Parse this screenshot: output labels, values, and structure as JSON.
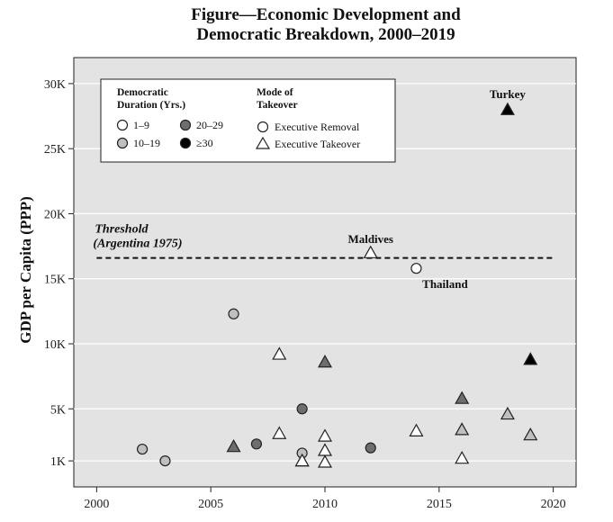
{
  "chart_data": {
    "type": "scatter",
    "title_line1": "Figure—Economic Development and",
    "title_line2": "Democratic Breakdown, 2000–2019",
    "xlabel": "",
    "ylabel": "GDP per Capita (PPP)",
    "xlim": [
      1999,
      2021
    ],
    "ylim": [
      -1000,
      32000
    ],
    "x_ticks": [
      2000,
      2005,
      2010,
      2015,
      2020
    ],
    "x_tick_labels": [
      "2000",
      "2005",
      "2010",
      "2015",
      "2020"
    ],
    "y_ticks": [
      1000,
      5000,
      10000,
      15000,
      20000,
      25000,
      30000
    ],
    "y_tick_labels": [
      "1K",
      "5K",
      "10K",
      "15K",
      "20K",
      "25K",
      "30K"
    ],
    "grid": "horizontal",
    "background_color": "#e3e3e3",
    "legend": {
      "placement": "top-left",
      "duration_title_line1": "Democratic",
      "duration_title_line2": "Duration (Yrs.)",
      "mode_title_line1": "Mode of",
      "mode_title_line2": "Takeover",
      "duration_items": [
        {
          "label": "1–9",
          "color": "#ffffff"
        },
        {
          "label": "10–19",
          "color": "#bfbfbf"
        },
        {
          "label": "20–29",
          "color": "#6e6e6e"
        },
        {
          "label": "≥30",
          "color": "#000000"
        }
      ],
      "mode_items": [
        {
          "label": "Executive Removal",
          "shape": "circle"
        },
        {
          "label": "Executive Takeover",
          "shape": "triangle"
        }
      ]
    },
    "threshold": {
      "value": 16600,
      "x_range": [
        2000,
        2020
      ],
      "label_line1": "Threshold",
      "label_line2": "(Argentina 1975)"
    },
    "annotations": [
      {
        "text": "Turkey",
        "x": 2018,
        "y": 28000
      },
      {
        "text": "Maldives",
        "x": 2012,
        "y": 17000
      },
      {
        "text": "Thailand",
        "x": 2014,
        "y": 15800
      }
    ],
    "points": [
      {
        "x": 2002,
        "y": 1900,
        "shape": "circle",
        "duration": "10–19"
      },
      {
        "x": 2003,
        "y": 1000,
        "shape": "circle",
        "duration": "10–19"
      },
      {
        "x": 2006,
        "y": 12300,
        "shape": "circle",
        "duration": "10–19"
      },
      {
        "x": 2006,
        "y": 2100,
        "shape": "triangle",
        "duration": "20–29"
      },
      {
        "x": 2007,
        "y": 2300,
        "shape": "circle",
        "duration": "20–29"
      },
      {
        "x": 2008,
        "y": 9200,
        "shape": "triangle",
        "duration": "1–9"
      },
      {
        "x": 2008,
        "y": 3100,
        "shape": "triangle",
        "duration": "1–9"
      },
      {
        "x": 2009,
        "y": 5000,
        "shape": "circle",
        "duration": "20–29"
      },
      {
        "x": 2009,
        "y": 1600,
        "shape": "circle",
        "duration": "10–19"
      },
      {
        "x": 2009,
        "y": 1000,
        "shape": "triangle",
        "duration": "10–19"
      },
      {
        "x": 2009,
        "y": 1000,
        "shape": "triangle",
        "duration": "1–9"
      },
      {
        "x": 2010,
        "y": 8600,
        "shape": "triangle",
        "duration": "20–29"
      },
      {
        "x": 2010,
        "y": 2900,
        "shape": "triangle",
        "duration": "1–9"
      },
      {
        "x": 2010,
        "y": 1800,
        "shape": "triangle",
        "duration": "1–9"
      },
      {
        "x": 2010,
        "y": 900,
        "shape": "triangle",
        "duration": "1–9"
      },
      {
        "x": 2012,
        "y": 17000,
        "shape": "triangle",
        "duration": "1–9"
      },
      {
        "x": 2012,
        "y": 2000,
        "shape": "circle",
        "duration": "20–29"
      },
      {
        "x": 2014,
        "y": 15800,
        "shape": "circle",
        "duration": "1–9"
      },
      {
        "x": 2014,
        "y": 3300,
        "shape": "triangle",
        "duration": "1–9"
      },
      {
        "x": 2016,
        "y": 5800,
        "shape": "triangle",
        "duration": "20–29"
      },
      {
        "x": 2016,
        "y": 3400,
        "shape": "triangle",
        "duration": "10–19"
      },
      {
        "x": 2016,
        "y": 1200,
        "shape": "triangle",
        "duration": "1–9"
      },
      {
        "x": 2018,
        "y": 28000,
        "shape": "triangle",
        "duration": "≥30"
      },
      {
        "x": 2018,
        "y": 4600,
        "shape": "triangle",
        "duration": "10–19"
      },
      {
        "x": 2019,
        "y": 8800,
        "shape": "triangle",
        "duration": "≥30"
      },
      {
        "x": 2019,
        "y": 3000,
        "shape": "triangle",
        "duration": "10–19"
      }
    ]
  }
}
